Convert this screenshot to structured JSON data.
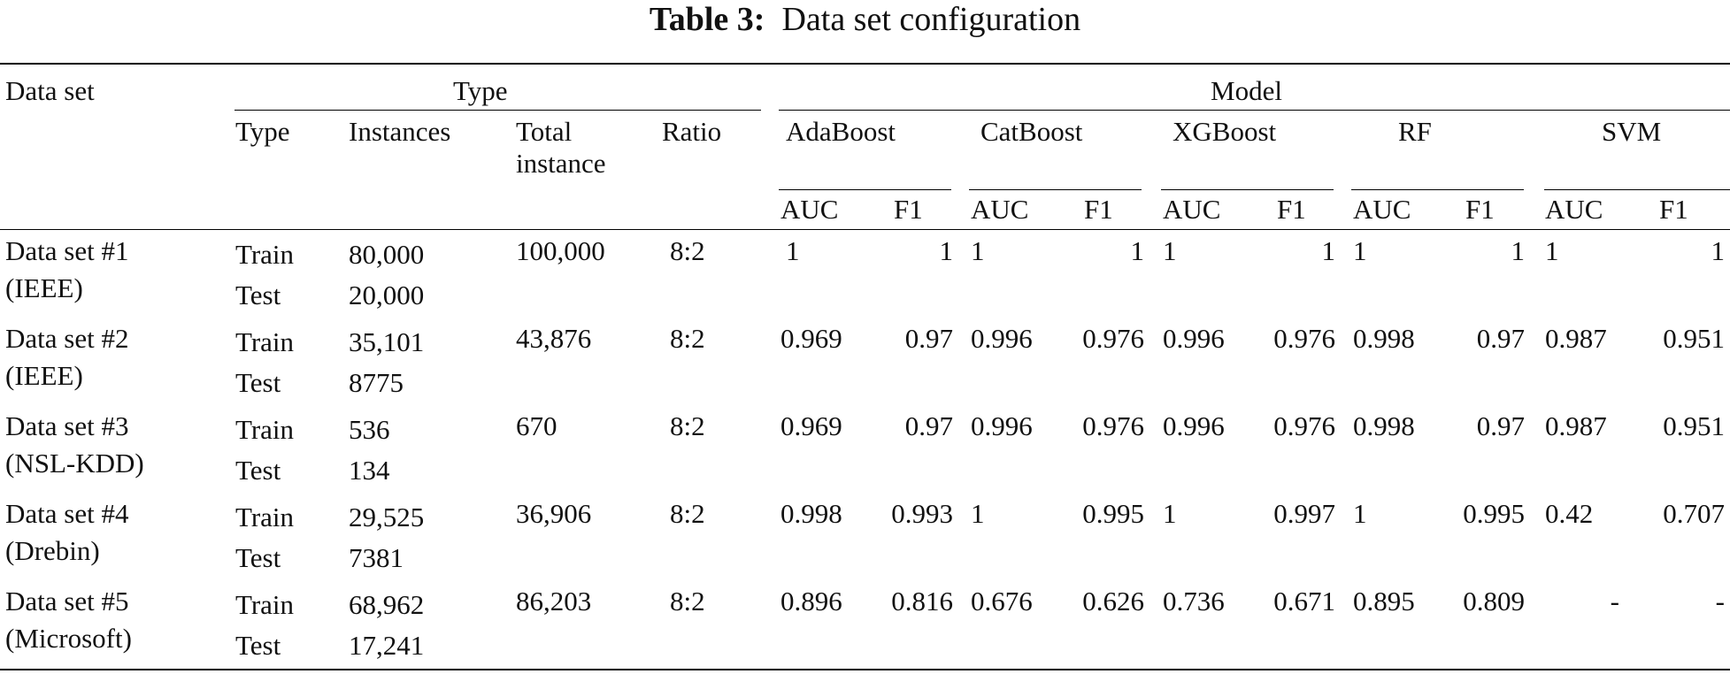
{
  "caption": {
    "label": "Table 3:",
    "title": "Data set configuration"
  },
  "header": {
    "dataset": "Data set",
    "type_group": "Type",
    "model_group": "Model",
    "type_cols": [
      "Type",
      "Instances",
      "Total instance",
      "Ratio"
    ],
    "models": [
      "AdaBoost",
      "CatBoost",
      "XGBoost",
      "RF",
      "SVM"
    ],
    "metrics": [
      "AUC",
      "F1"
    ]
  },
  "rows": [
    {
      "name": [
        "Data set #1",
        "(IEEE)"
      ],
      "types": [
        "Train",
        "Test"
      ],
      "instances": [
        "80,000",
        "20,000"
      ],
      "total": "100,000",
      "ratio": "8:2",
      "metrics": [
        "1",
        "1",
        "1",
        "1",
        "1",
        "1",
        "1",
        "1",
        "1",
        "1"
      ]
    },
    {
      "name": [
        "Data set #2",
        "(IEEE)"
      ],
      "types": [
        "Train",
        "Test"
      ],
      "instances": [
        "35,101",
        "8775"
      ],
      "total": "43,876",
      "ratio": "8:2",
      "metrics": [
        "0.969",
        "0.97",
        "0.996",
        "0.976",
        "0.996",
        "0.976",
        "0.998",
        "0.97",
        "0.987",
        "0.951"
      ]
    },
    {
      "name": [
        "Data set #3",
        "(NSL-KDD)"
      ],
      "types": [
        "Train",
        "Test"
      ],
      "instances": [
        "536",
        "134"
      ],
      "total": "670",
      "ratio": "8:2",
      "metrics": [
        "0.969",
        "0.97",
        "0.996",
        "0.976",
        "0.996",
        "0.976",
        "0.998",
        "0.97",
        "0.987",
        "0.951"
      ]
    },
    {
      "name": [
        "Data set #4",
        "(Drebin)"
      ],
      "types": [
        "Train",
        "Test"
      ],
      "instances": [
        "29,525",
        "7381"
      ],
      "total": "36,906",
      "ratio": "8:2",
      "metrics": [
        "0.998",
        "0.993",
        "1",
        "0.995",
        "1",
        "0.997",
        "1",
        "0.995",
        "0.42",
        "0.707"
      ]
    },
    {
      "name": [
        "Data set #5",
        "(Microsoft)"
      ],
      "types": [
        "Train",
        "Test"
      ],
      "instances": [
        "68,962",
        "17,241"
      ],
      "total": "86,203",
      "ratio": "8:2",
      "metrics": [
        "0.896",
        "0.816",
        "0.676",
        "0.626",
        "0.736",
        "0.671",
        "0.895",
        "0.809",
        "-",
        "-"
      ]
    }
  ]
}
